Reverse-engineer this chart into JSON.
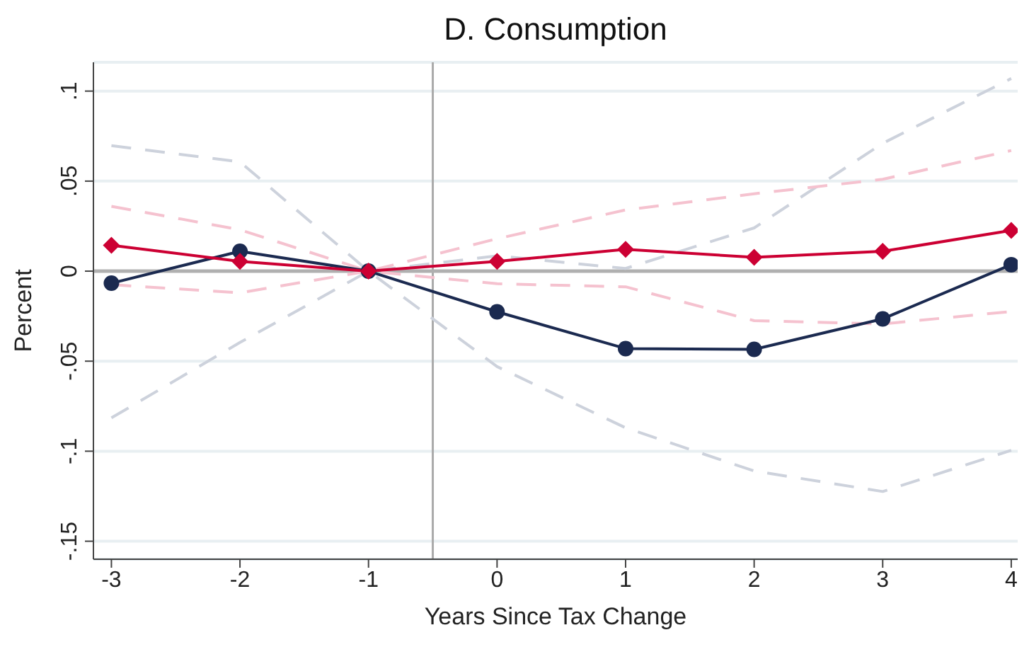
{
  "chart_data": {
    "type": "line",
    "title": "D. Consumption",
    "xlabel": "Years Since Tax Change",
    "ylabel": "Percent",
    "x": [
      -3,
      -2,
      -1,
      0,
      1,
      2,
      3,
      4
    ],
    "series": [
      {
        "color": "#cdd2dc",
        "marker": "none",
        "line_style": "dashed",
        "values": [
          -0.0815,
          -0.0396,
          0,
          -0.053,
          -0.087,
          -0.111,
          -0.1224,
          -0.0995
        ]
      },
      {
        "color": "#cdd2dc",
        "marker": "none",
        "line_style": "dashed",
        "values": [
          0.0697,
          0.0607,
          0,
          0.0085,
          0.0015,
          0.024,
          0.071,
          0.107
        ]
      },
      {
        "color": "#f5c2cf",
        "marker": "none",
        "line_style": "dashed",
        "values": [
          -0.0075,
          -0.012,
          0,
          -0.007,
          -0.0087,
          -0.0275,
          -0.0293,
          -0.0224
        ]
      },
      {
        "color": "#f5c2cf",
        "marker": "none",
        "line_style": "dashed",
        "values": [
          0.036,
          0.023,
          0,
          0.018,
          0.034,
          0.043,
          0.051,
          0.067
        ]
      },
      {
        "color": "#1b2a50",
        "marker": "circle",
        "values": [
          -0.0067,
          0.011,
          0,
          -0.0226,
          -0.043,
          -0.0434,
          -0.0265,
          0.0036
        ]
      },
      {
        "color": "#cc0033",
        "marker": "diamond",
        "values": [
          0.0144,
          0.0054,
          0,
          0.0054,
          0.0121,
          0.0077,
          0.011,
          0.0226
        ]
      }
    ],
    "xlim": [
      -3.14,
      4.05
    ],
    "xticks": [
      -3,
      -2,
      -1,
      0,
      1,
      2,
      3,
      4
    ],
    "ylim": [
      -0.16,
      0.116
    ],
    "yticks": [
      {
        "value": -0.15,
        "label": "-.15"
      },
      {
        "value": -0.1,
        "label": "-.1"
      },
      {
        "value": -0.05,
        "label": "-.05"
      },
      0,
      {
        "value": 0.05,
        "label": ".05"
      },
      {
        "value": 0.1,
        "label": ".1"
      }
    ],
    "grid": "y",
    "line_style": "solid",
    "ref_lines": [
      {
        "axis": "x",
        "value": -0.5,
        "color": "#aaaaaa"
      },
      {
        "axis": "y",
        "value": 0,
        "color": "#b0b0b0"
      }
    ]
  }
}
